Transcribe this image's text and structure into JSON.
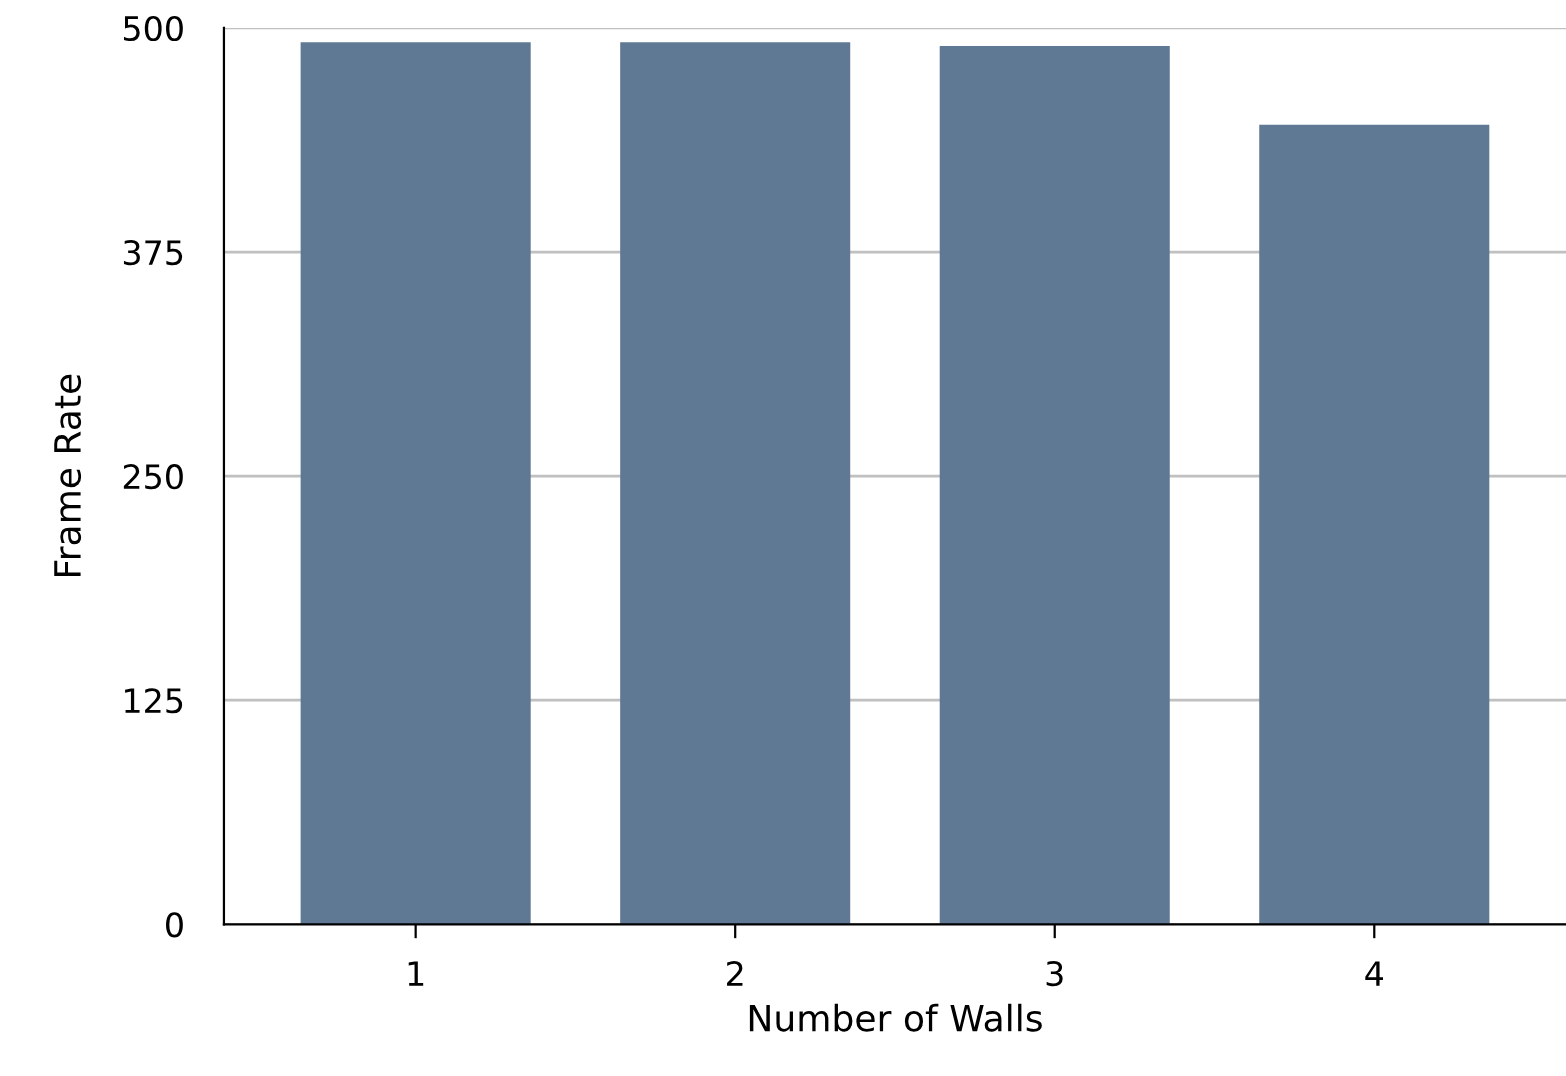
{
  "chart_data": {
    "type": "bar",
    "xlabel": "Number of Walls",
    "ylabel": "Frame Rate",
    "categories": [
      "1",
      "2",
      "3",
      "4"
    ],
    "values": [
      492,
      492,
      490,
      446
    ],
    "color": "#5f7893",
    "ylim": [
      0,
      500
    ],
    "yticks": [
      0,
      125,
      250,
      375,
      500
    ],
    "grid": "y"
  }
}
